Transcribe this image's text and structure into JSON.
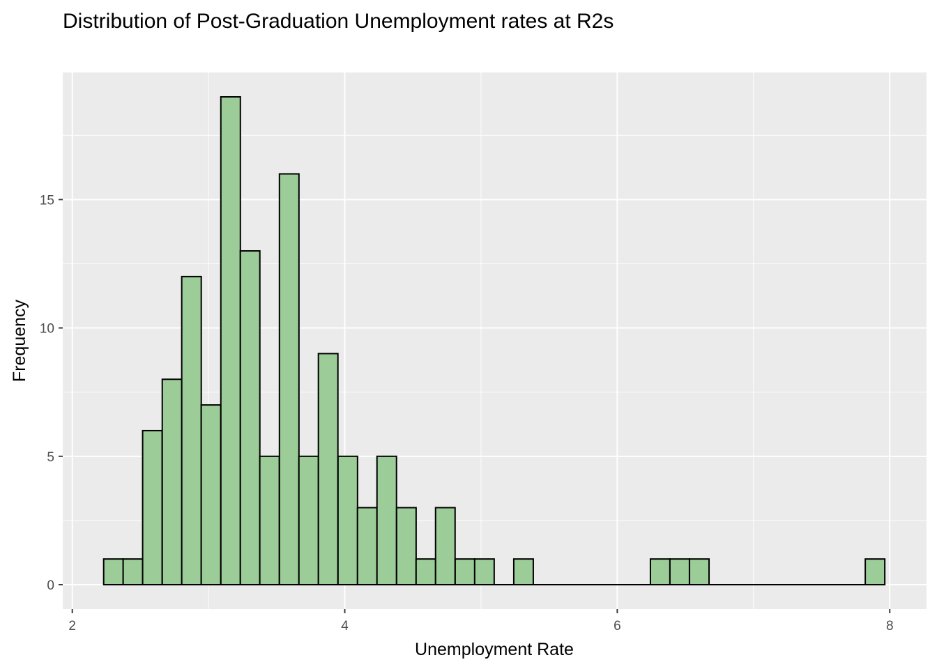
{
  "chart_data": {
    "type": "bar",
    "subtype": "histogram",
    "title": "Distribution of Post-Graduation Unemployment rates at R2s",
    "xlabel": "Unemployment Rate",
    "ylabel": "Frequency",
    "bin_width": 0.1433,
    "bin_centers": [
      2.302,
      2.445,
      2.588,
      2.732,
      2.875,
      3.018,
      3.162,
      3.305,
      3.448,
      3.592,
      3.735,
      3.878,
      4.022,
      4.165,
      4.308,
      4.452,
      4.595,
      4.738,
      4.882,
      5.025,
      5.168,
      5.312,
      5.455,
      5.598,
      5.742,
      5.885,
      6.028,
      6.172,
      6.315,
      6.458,
      6.602,
      6.745,
      6.888,
      7.032,
      7.175,
      7.318,
      7.462,
      7.605,
      7.748,
      7.892
    ],
    "values": [
      1,
      1,
      6,
      8,
      12,
      7,
      19,
      13,
      5,
      16,
      5,
      9,
      5,
      3,
      5,
      3,
      1,
      3,
      1,
      1,
      0,
      1,
      0,
      0,
      0,
      0,
      0,
      0,
      1,
      1,
      1,
      0,
      0,
      0,
      0,
      0,
      0,
      0,
      0,
      1
    ],
    "xlim": [
      1.93,
      8.27
    ],
    "ylim": [
      -0.95,
      19.95
    ],
    "x_ticks": [
      2,
      4,
      6,
      8
    ],
    "y_ticks": [
      0,
      5,
      10,
      15
    ],
    "x_tick_labels": [
      "2",
      "4",
      "6",
      "8"
    ],
    "y_tick_labels": [
      "0",
      "5",
      "10",
      "15"
    ],
    "grid": true,
    "colors": {
      "bar_fill": "#9ccd98",
      "bar_stroke": "#000000",
      "panel_bg": "#ebebeb",
      "grid": "#ffffff",
      "tick_text": "#4d4d4d"
    }
  }
}
